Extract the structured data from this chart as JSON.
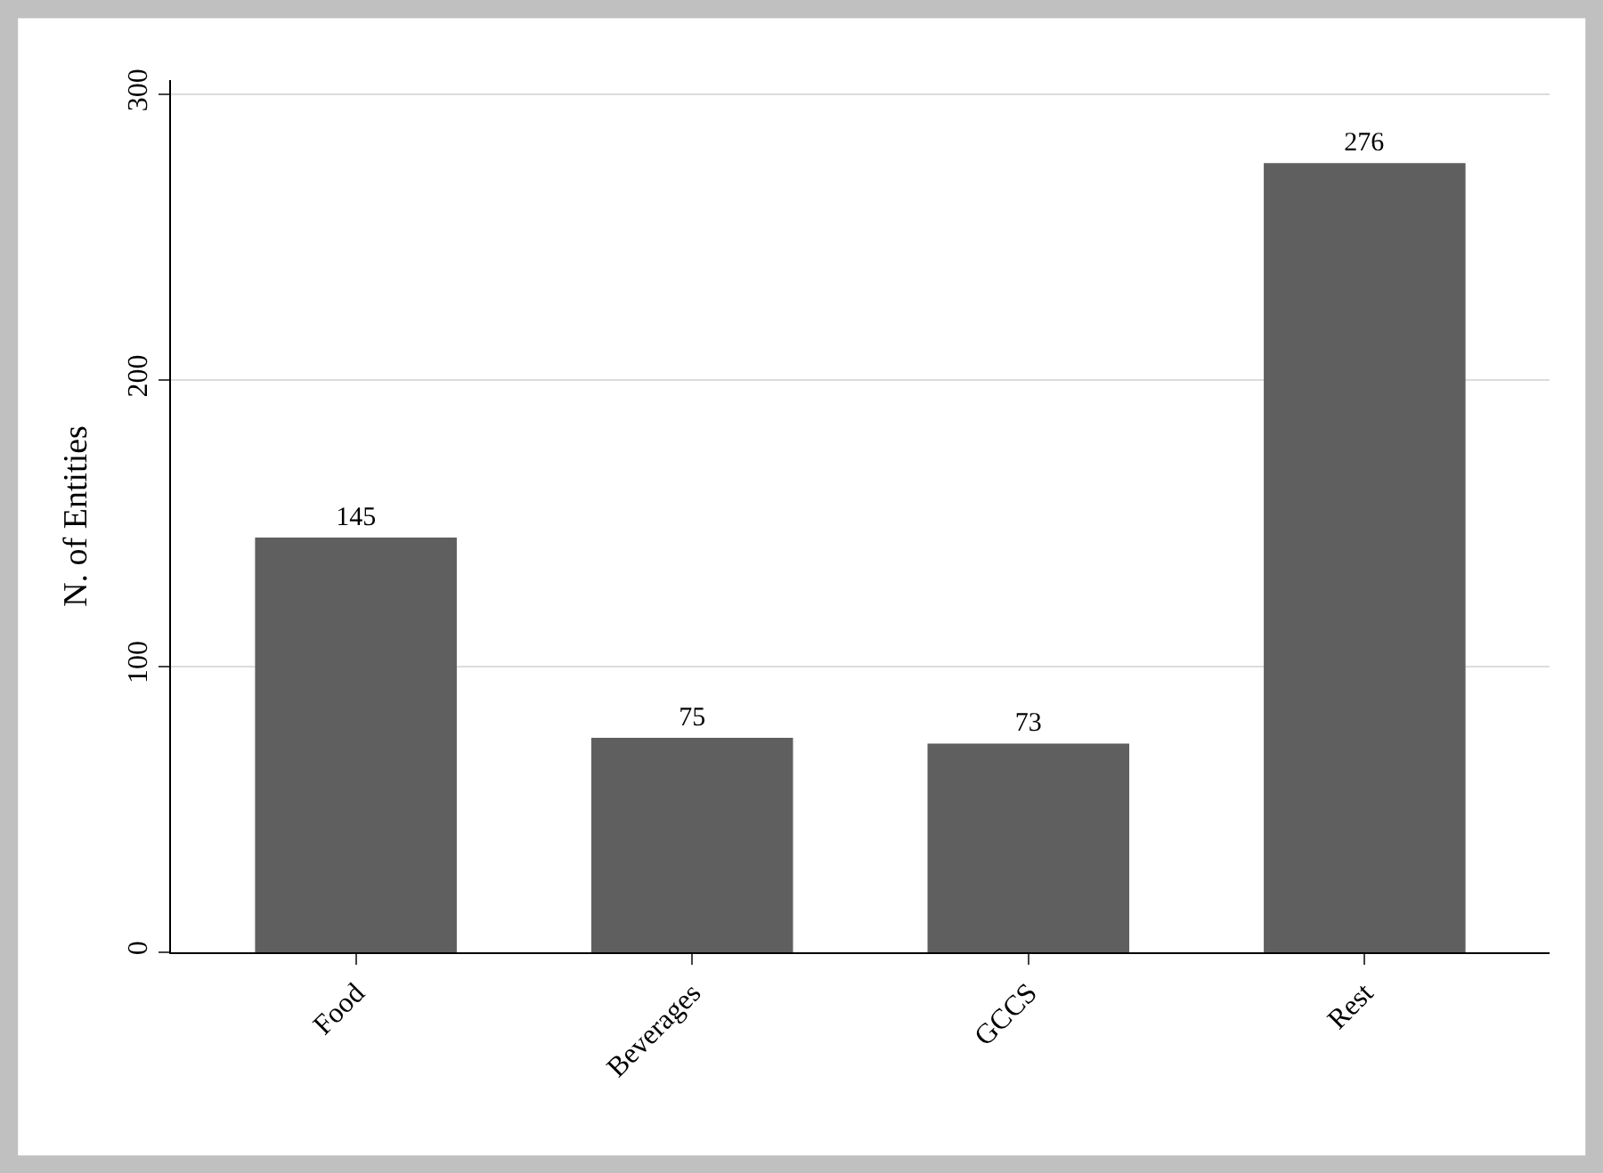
{
  "chart_data": {
    "type": "bar",
    "ylabel": "N. of Entities",
    "categories": [
      "Food",
      "Beverages",
      "GCCS",
      "Rest"
    ],
    "values": [
      145,
      75,
      73,
      276
    ],
    "color": "#5f5f5f",
    "ylim": [
      0,
      305
    ],
    "yticks": [
      0,
      100,
      200,
      300
    ],
    "grid": "y",
    "data_labels": true,
    "legend": false
  }
}
